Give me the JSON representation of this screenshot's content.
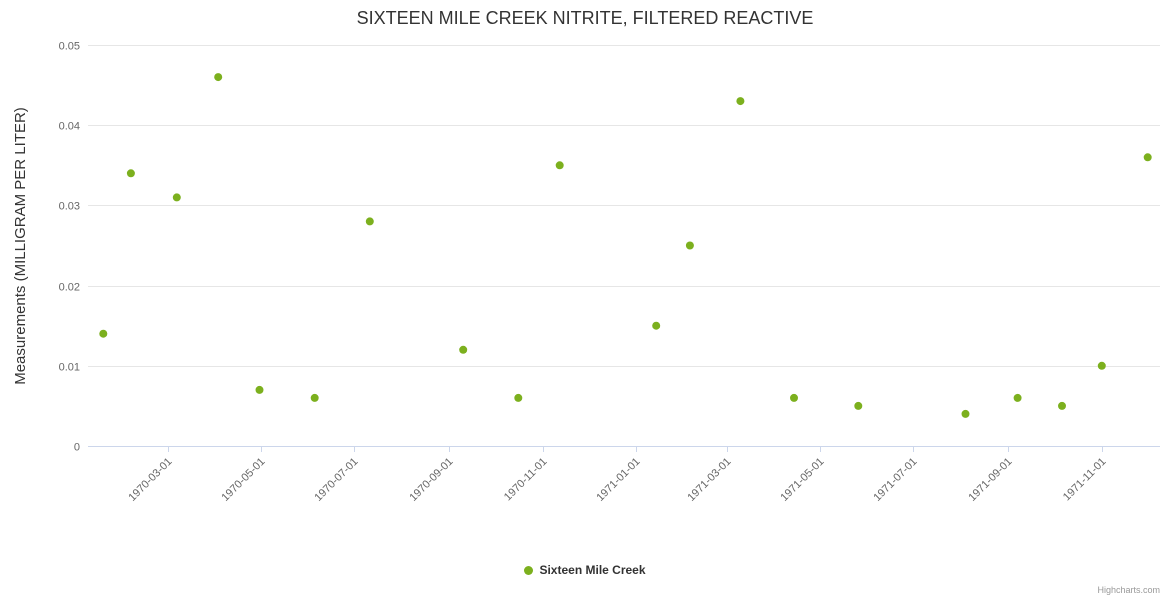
{
  "credits": "Highcharts.com",
  "chart_data": {
    "type": "scatter",
    "title": "SIXTEEN MILE CREEK NITRITE, FILTERED REACTIVE",
    "xlabel": "",
    "ylabel": "Measurements (MILLIGRAM PER LITER)",
    "legend": [
      "Sixteen Mile Creek"
    ],
    "legend_position": "bottom-center",
    "grid": "horizontal",
    "series_color": "#7cb01e",
    "grid_color": "#e6e6e6",
    "axis_line_color": "#ccd6eb",
    "tick_label_color": "#666666",
    "ylim": [
      0,
      0.05
    ],
    "yticks": [
      0,
      0.01,
      0.02,
      0.03,
      0.04,
      0.05
    ],
    "ytick_labels": [
      "0",
      "0.01",
      "0.02",
      "0.03",
      "0.04",
      "0.05"
    ],
    "xlim": [
      "1970-01-08",
      "1971-12-09"
    ],
    "xticks": [
      "1970-03-01",
      "1970-05-01",
      "1970-07-01",
      "1970-09-01",
      "1970-11-01",
      "1971-01-01",
      "1971-03-01",
      "1971-05-01",
      "1971-07-01",
      "1971-09-01",
      "1971-11-01"
    ],
    "xtick_labels": [
      "1970-03-01",
      "1970-05-01",
      "1970-07-01",
      "1970-09-01",
      "1970-11-01",
      "1971-01-01",
      "1971-03-01",
      "1971-05-01",
      "1971-07-01",
      "1971-09-01",
      "1971-11-01"
    ],
    "points": [
      {
        "x": "1970-01-18",
        "y": 0.014
      },
      {
        "x": "1970-02-05",
        "y": 0.034
      },
      {
        "x": "1970-03-07",
        "y": 0.031
      },
      {
        "x": "1970-04-03",
        "y": 0.046
      },
      {
        "x": "1970-04-30",
        "y": 0.007
      },
      {
        "x": "1970-06-05",
        "y": 0.006
      },
      {
        "x": "1970-07-11",
        "y": 0.028
      },
      {
        "x": "1970-09-10",
        "y": 0.012
      },
      {
        "x": "1970-10-16",
        "y": 0.006
      },
      {
        "x": "1970-11-12",
        "y": 0.035
      },
      {
        "x": "1971-01-14",
        "y": 0.015
      },
      {
        "x": "1971-02-05",
        "y": 0.025
      },
      {
        "x": "1971-03-10",
        "y": 0.043
      },
      {
        "x": "1971-04-14",
        "y": 0.006
      },
      {
        "x": "1971-05-26",
        "y": 0.005
      },
      {
        "x": "1971-08-04",
        "y": 0.004
      },
      {
        "x": "1971-09-07",
        "y": 0.006
      },
      {
        "x": "1971-10-06",
        "y": 0.005
      },
      {
        "x": "1971-11-01",
        "y": 0.01
      },
      {
        "x": "1971-12-01",
        "y": 0.036
      }
    ]
  }
}
